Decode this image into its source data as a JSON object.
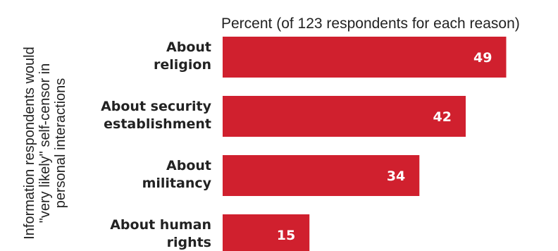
{
  "chart_data": {
    "type": "bar",
    "orientation": "horizontal",
    "title": "",
    "subtitle": "Percent (of 123 respondents for each reason)",
    "ylabel_lines": [
      "Information respondents would",
      "\"very likely\" self-censor in",
      "personal interactions"
    ],
    "xlabel": "",
    "categories": [
      [
        "About",
        "religion"
      ],
      [
        "About security",
        "establishment"
      ],
      [
        "About",
        "militancy"
      ],
      [
        "About human",
        "rights"
      ]
    ],
    "values": [
      49,
      42,
      34,
      15
    ],
    "xlim": [
      0,
      56
    ],
    "grid": false,
    "legend": "none",
    "colors": {
      "bar": "#d0202e",
      "value_label": "#ffffff",
      "text": "#222222"
    }
  }
}
